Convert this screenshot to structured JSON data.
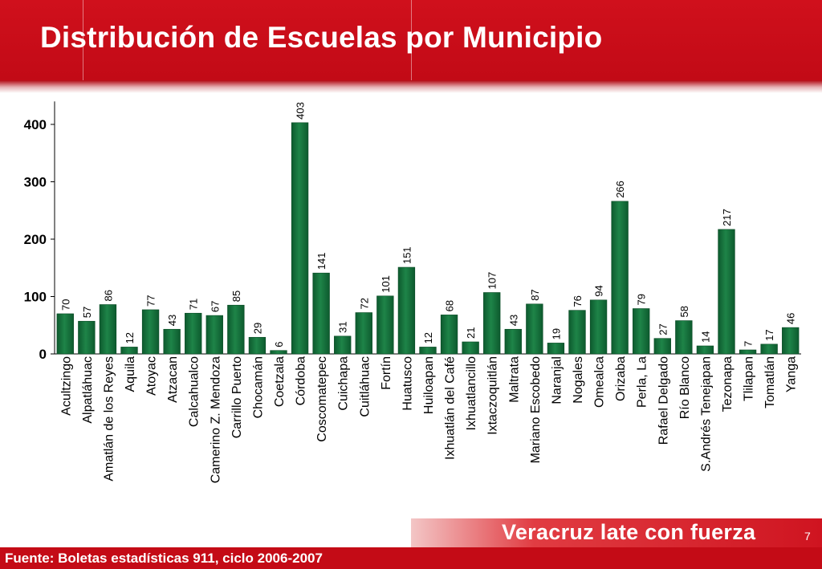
{
  "header": {
    "title": "Distribución de Escuelas por Municipio"
  },
  "footer": {
    "slogan": "Veracruz late con fuerza",
    "page_number": "7",
    "source": "Fuente: Boletas estadísticas 911, ciclo 2006-2007"
  },
  "colors": {
    "header": "#c40b16",
    "bar": "#1e8448",
    "bar_dark": "#0d5a2e"
  },
  "chart_data": {
    "type": "bar",
    "title": "",
    "xlabel": "",
    "ylabel": "",
    "ylim": [
      0,
      440
    ],
    "yticks": [
      0,
      100,
      200,
      300,
      400
    ],
    "grid": false,
    "data_labels": true,
    "categories": [
      "Acultzingo",
      "Alpatláhuac",
      "Amatlán de los Reyes",
      "Aquila",
      "Atoyac",
      "Atzacan",
      "Calcahualco",
      "Camerino Z. Mendoza",
      "Carrillo Puerto",
      "Chocamán",
      "Coetzala",
      "Córdoba",
      "Coscomatepec",
      "Cuichapa",
      "Cuitláhuac",
      "Fortín",
      "Huatusco",
      "Huiloapan",
      "Ixhuatlán del Café",
      "Ixhuatlancillo",
      "Ixtaczoquitlán",
      "Maltrata",
      "Mariano Escobedo",
      "Naranjal",
      "Nogales",
      "Omealca",
      "Orizaba",
      "Perla, La",
      "Rafael Delgado",
      "Río Blanco",
      "S.Andrés Tenejapan",
      "Tezonapa",
      "Tlilapan",
      "Tomatlán",
      "Yanga"
    ],
    "values": [
      70,
      57,
      86,
      12,
      77,
      43,
      71,
      67,
      85,
      29,
      6,
      403,
      141,
      31,
      72,
      101,
      151,
      12,
      68,
      21,
      107,
      43,
      87,
      19,
      76,
      94,
      266,
      79,
      27,
      58,
      14,
      217,
      7,
      17,
      46
    ]
  }
}
